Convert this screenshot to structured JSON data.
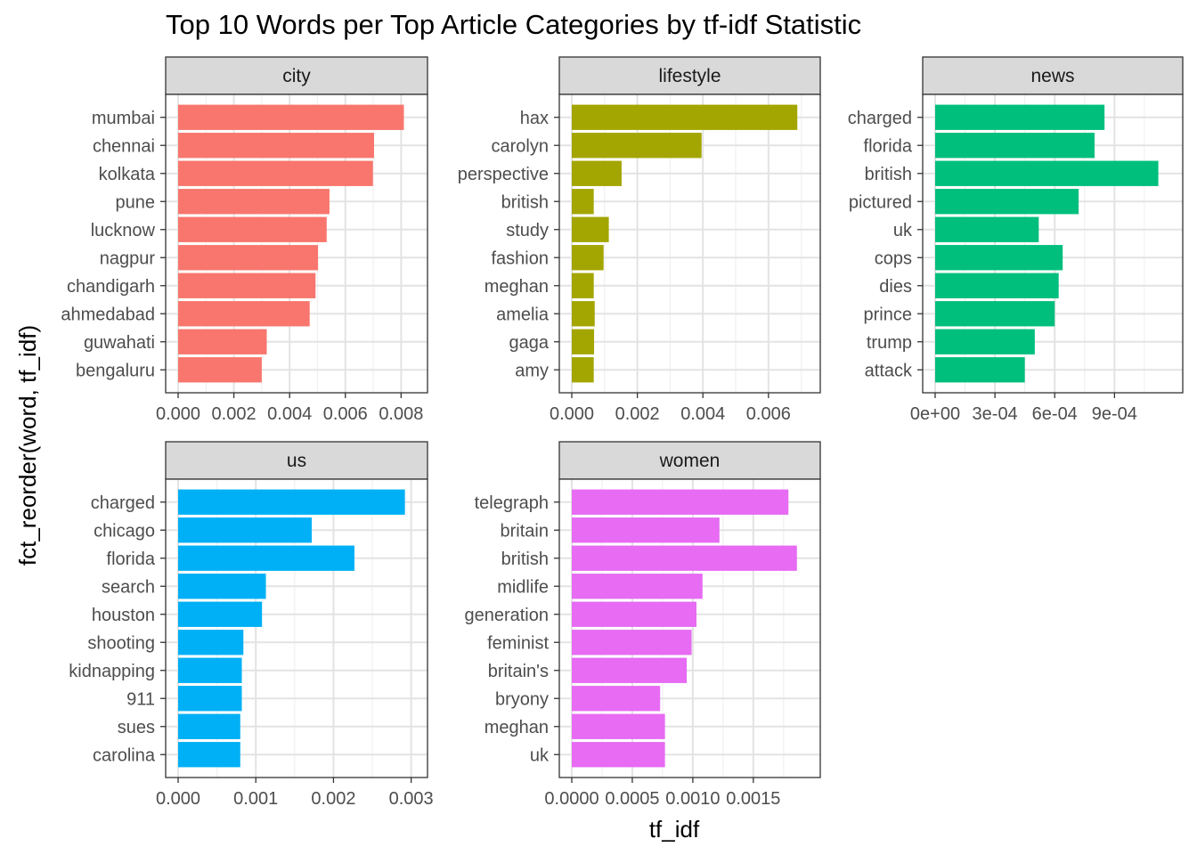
{
  "chart_data": {
    "type": "bar",
    "title": "Top 10 Words per Top Article Categories by tf-idf Statistic",
    "xlabel": "tf_idf",
    "ylabel": "fct_reorder(word, tf_idf)",
    "grid": true,
    "legend": "none",
    "orientation": "horizontal",
    "facets": [
      {
        "name": "city",
        "color": "#F8766D",
        "xlim": [
          0,
          0.0085
        ],
        "ticks": [
          0,
          0.002,
          0.004,
          0.006,
          0.008
        ],
        "tick_labels": [
          "0.000",
          "0.002",
          "0.004",
          "0.006",
          "0.008"
        ],
        "categories": [
          "mumbai",
          "chennai",
          "kolkata",
          "pune",
          "lucknow",
          "nagpur",
          "chandigarh",
          "ahmedabad",
          "guwahati",
          "bengaluru"
        ],
        "values": [
          0.0081,
          0.00703,
          0.00699,
          0.00543,
          0.00533,
          0.00502,
          0.00493,
          0.00472,
          0.00318,
          0.003
        ]
      },
      {
        "name": "lifestyle",
        "color": "#A3A500",
        "xlim": [
          0,
          0.0072
        ],
        "ticks": [
          0,
          0.002,
          0.004,
          0.006
        ],
        "tick_labels": [
          "0.000",
          "0.002",
          "0.004",
          "0.006"
        ],
        "categories": [
          "hax",
          "carolyn",
          "perspective",
          "british",
          "study",
          "fashion",
          "meghan",
          "amelia",
          "gaga",
          "amy"
        ],
        "values": [
          0.00688,
          0.00396,
          0.00152,
          0.00067,
          0.00113,
          0.00097,
          0.00067,
          0.0007,
          0.00068,
          0.00067
        ]
      },
      {
        "name": "news",
        "color": "#00BF7D",
        "xlim": [
          0,
          0.00118
        ],
        "ticks": [
          0,
          0.0003,
          0.0006,
          0.0009
        ],
        "tick_labels": [
          "0e+00",
          "3e-04",
          "6e-04",
          "9e-04"
        ],
        "categories": [
          "charged",
          "florida",
          "british",
          "pictured",
          "uk",
          "cops",
          "dies",
          "prince",
          "trump",
          "attack"
        ],
        "values": [
          0.00085,
          0.0008,
          0.00112,
          0.00072,
          0.00052,
          0.00064,
          0.00062,
          0.0006,
          0.0005,
          0.00045
        ]
      },
      {
        "name": "us",
        "color": "#00B0F6",
        "xlim": [
          0,
          0.00305
        ],
        "ticks": [
          0,
          0.001,
          0.002,
          0.003
        ],
        "tick_labels": [
          "0.000",
          "0.001",
          "0.002",
          "0.003"
        ],
        "categories": [
          "charged",
          "chicago",
          "florida",
          "search",
          "houston",
          "shooting",
          "kidnapping",
          "911",
          "sues",
          "carolina"
        ],
        "values": [
          0.00292,
          0.00172,
          0.00227,
          0.00113,
          0.00108,
          0.00084,
          0.00082,
          0.00082,
          0.0008,
          0.0008
        ]
      },
      {
        "name": "women",
        "color": "#E76BF3",
        "xlim": [
          0,
          0.00195
        ],
        "ticks": [
          0,
          0.0005,
          0.001,
          0.0015
        ],
        "tick_labels": [
          "0.0000",
          "0.0005",
          "0.0010",
          "0.0015"
        ],
        "categories": [
          "telegraph",
          "britain",
          "british",
          "midlife",
          "generation",
          "feminist",
          "britain's",
          "bryony",
          "meghan",
          "uk"
        ],
        "values": [
          0.00179,
          0.00122,
          0.00186,
          0.00108,
          0.00103,
          0.00099,
          0.00095,
          0.00073,
          0.00077,
          0.00077
        ]
      }
    ]
  }
}
